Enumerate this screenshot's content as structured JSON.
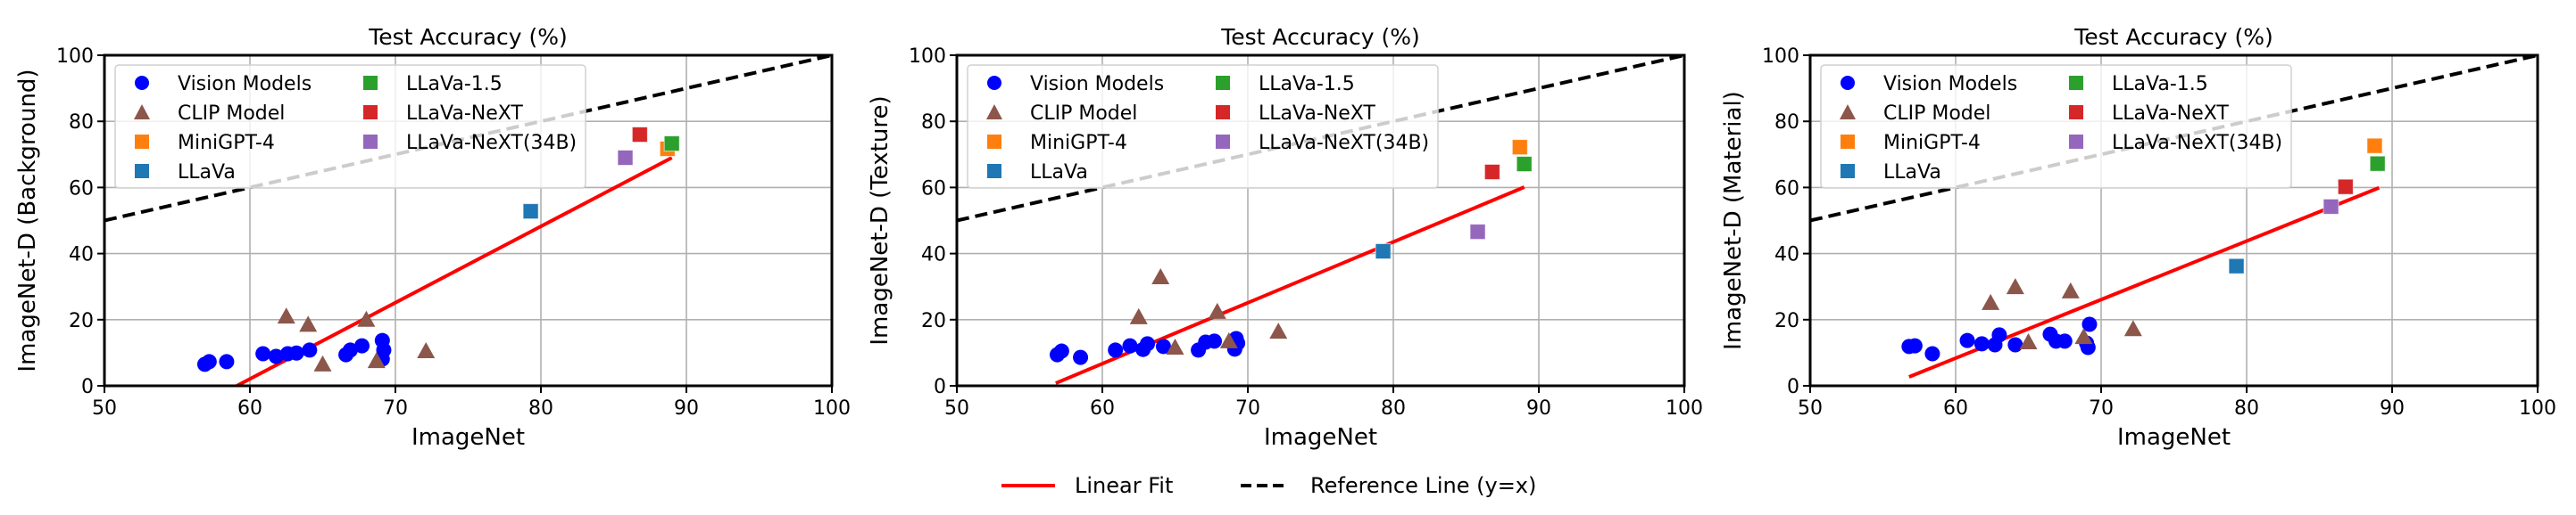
{
  "figure": {
    "legend": {
      "items": [
        {
          "label": "Linear Fit",
          "style": "solid",
          "color": "#ff0000"
        },
        {
          "label": "Reference Line (y=x)",
          "style": "dashed",
          "color": "#000000"
        }
      ]
    }
  },
  "chart_data": [
    {
      "type": "scatter",
      "title": "Test Accuracy (%)",
      "xlabel": "ImageNet",
      "ylabel": "ImageNet-D (Background)",
      "xlim": [
        50,
        100
      ],
      "ylim": [
        0,
        100
      ],
      "xticks": [
        "50",
        "60",
        "70",
        "80",
        "90",
        "100"
      ],
      "yticks": [
        "0",
        "20",
        "40",
        "60",
        "80",
        "100"
      ],
      "grid": true,
      "legend_position": "upper-left",
      "series": [
        {
          "name": "Vision Models",
          "marker": "circle",
          "color": "#0000ff",
          "points": [
            [
              56.9,
              6.5
            ],
            [
              57.2,
              7.3
            ],
            [
              58.4,
              7.3
            ],
            [
              60.9,
              9.7
            ],
            [
              61.8,
              8.9
            ],
            [
              62.6,
              9.7
            ],
            [
              63.2,
              9.9
            ],
            [
              64.1,
              10.8
            ],
            [
              66.6,
              9.4
            ],
            [
              66.9,
              10.8
            ],
            [
              67.7,
              12.1
            ],
            [
              69.1,
              13.7
            ],
            [
              69.2,
              10.8
            ],
            [
              69.1,
              8.1
            ]
          ]
        },
        {
          "name": "CLIP Model",
          "marker": "triangle",
          "color": "#8c564b",
          "points": [
            [
              62.5,
              21.0
            ],
            [
              64.0,
              18.5
            ],
            [
              65.0,
              6.5
            ],
            [
              68.0,
              20.0
            ],
            [
              68.7,
              7.5
            ],
            [
              72.1,
              10.5
            ]
          ]
        },
        {
          "name": "MiniGPT-4",
          "marker": "square",
          "color": "#ff7f0e",
          "points": [
            [
              88.7,
              71.7
            ]
          ]
        },
        {
          "name": "LLaVa",
          "marker": "square",
          "color": "#1f77b4",
          "points": [
            [
              79.3,
              52.8
            ]
          ]
        },
        {
          "name": "LLaVa-1.5",
          "marker": "square",
          "color": "#2ca02c",
          "points": [
            [
              89.0,
              73.3
            ]
          ]
        },
        {
          "name": "LLaVa-NeXT",
          "marker": "square",
          "color": "#d62728",
          "points": [
            [
              86.8,
              76.0
            ]
          ]
        },
        {
          "name": "LLaVa-NeXT(34B)",
          "marker": "square",
          "color": "#9467bd",
          "points": [
            [
              85.8,
              69.0
            ]
          ]
        }
      ],
      "linear_fit": {
        "x": [
          59.1,
          89.0
        ],
        "y": [
          0.0,
          69.0
        ]
      },
      "reference_line": {
        "x": [
          50,
          100
        ],
        "y": [
          50,
          100
        ]
      }
    },
    {
      "type": "scatter",
      "title": "Test Accuracy (%)",
      "xlabel": "ImageNet",
      "ylabel": "ImageNet-D (Texture)",
      "xlim": [
        50,
        100
      ],
      "ylim": [
        0,
        100
      ],
      "xticks": [
        "50",
        "60",
        "70",
        "80",
        "90",
        "100"
      ],
      "yticks": [
        "0",
        "20",
        "40",
        "60",
        "80",
        "100"
      ],
      "grid": true,
      "legend_position": "upper-left",
      "series": [
        {
          "name": "Vision Models",
          "marker": "circle",
          "color": "#0000ff",
          "points": [
            [
              56.9,
              9.4
            ],
            [
              57.2,
              10.5
            ],
            [
              58.5,
              8.6
            ],
            [
              60.9,
              10.8
            ],
            [
              61.9,
              12.1
            ],
            [
              62.8,
              11.0
            ],
            [
              63.1,
              12.7
            ],
            [
              64.2,
              11.9
            ],
            [
              66.6,
              10.8
            ],
            [
              67.1,
              13.2
            ],
            [
              67.7,
              13.5
            ],
            [
              69.3,
              12.9
            ],
            [
              69.1,
              11.1
            ],
            [
              69.2,
              14.3
            ]
          ]
        },
        {
          "name": "CLIP Model",
          "marker": "triangle",
          "color": "#8c564b",
          "points": [
            [
              62.5,
              20.8
            ],
            [
              64.0,
              32.9
            ],
            [
              65.0,
              11.6
            ],
            [
              67.9,
              22.4
            ],
            [
              68.7,
              13.5
            ],
            [
              72.1,
              16.4
            ]
          ]
        },
        {
          "name": "MiniGPT-4",
          "marker": "square",
          "color": "#ff7f0e",
          "points": [
            [
              88.7,
              72.2
            ]
          ]
        },
        {
          "name": "LLaVa",
          "marker": "square",
          "color": "#1f77b4",
          "points": [
            [
              79.3,
              40.7
            ]
          ]
        },
        {
          "name": "LLaVa-1.5",
          "marker": "square",
          "color": "#2ca02c",
          "points": [
            [
              89.0,
              67.1
            ]
          ]
        },
        {
          "name": "LLaVa-NeXT",
          "marker": "square",
          "color": "#d62728",
          "points": [
            [
              86.8,
              64.7
            ]
          ]
        },
        {
          "name": "LLaVa-NeXT(34B)",
          "marker": "square",
          "color": "#9467bd",
          "points": [
            [
              85.8,
              46.6
            ]
          ]
        }
      ],
      "linear_fit": {
        "x": [
          56.8,
          89.0
        ],
        "y": [
          0.8,
          60.1
        ]
      },
      "reference_line": {
        "x": [
          50,
          100
        ],
        "y": [
          50,
          100
        ]
      }
    },
    {
      "type": "scatter",
      "title": "Test Accuracy (%)",
      "xlabel": "ImageNet",
      "ylabel": "ImageNet-D (Material)",
      "xlim": [
        50,
        100
      ],
      "ylim": [
        0,
        100
      ],
      "xticks": [
        "50",
        "60",
        "70",
        "80",
        "90",
        "100"
      ],
      "yticks": [
        "0",
        "20",
        "40",
        "60",
        "80",
        "100"
      ],
      "grid": true,
      "legend_position": "upper-left",
      "series": [
        {
          "name": "Vision Models",
          "marker": "circle",
          "color": "#0000ff",
          "points": [
            [
              56.8,
              11.9
            ],
            [
              57.2,
              12.1
            ],
            [
              58.4,
              9.7
            ],
            [
              60.8,
              13.7
            ],
            [
              61.8,
              12.7
            ],
            [
              62.7,
              12.4
            ],
            [
              63.0,
              15.4
            ],
            [
              64.1,
              12.4
            ],
            [
              66.5,
              15.6
            ],
            [
              66.9,
              13.5
            ],
            [
              67.5,
              13.5
            ],
            [
              69.2,
              18.6
            ],
            [
              69.1,
              11.6
            ],
            [
              69.0,
              12.9
            ]
          ]
        },
        {
          "name": "CLIP Model",
          "marker": "triangle",
          "color": "#8c564b",
          "points": [
            [
              62.4,
              25.1
            ],
            [
              64.1,
              29.9
            ],
            [
              65.0,
              13.2
            ],
            [
              67.9,
              28.6
            ],
            [
              68.8,
              14.8
            ],
            [
              72.2,
              17.2
            ]
          ]
        },
        {
          "name": "MiniGPT-4",
          "marker": "square",
          "color": "#ff7f0e",
          "points": [
            [
              88.8,
              72.6
            ]
          ]
        },
        {
          "name": "LLaVa",
          "marker": "square",
          "color": "#1f77b4",
          "points": [
            [
              79.3,
              36.2
            ]
          ]
        },
        {
          "name": "LLaVa-1.5",
          "marker": "square",
          "color": "#2ca02c",
          "points": [
            [
              89.0,
              67.2
            ]
          ]
        },
        {
          "name": "LLaVa-NeXT",
          "marker": "square",
          "color": "#d62728",
          "points": [
            [
              86.8,
              60.2
            ]
          ]
        },
        {
          "name": "LLaVa-NeXT(34B)",
          "marker": "square",
          "color": "#9467bd",
          "points": [
            [
              85.8,
              54.2
            ]
          ]
        }
      ],
      "linear_fit": {
        "x": [
          56.8,
          89.1
        ],
        "y": [
          2.7,
          59.9
        ]
      },
      "reference_line": {
        "x": [
          50,
          100
        ],
        "y": [
          50,
          100
        ]
      }
    }
  ]
}
